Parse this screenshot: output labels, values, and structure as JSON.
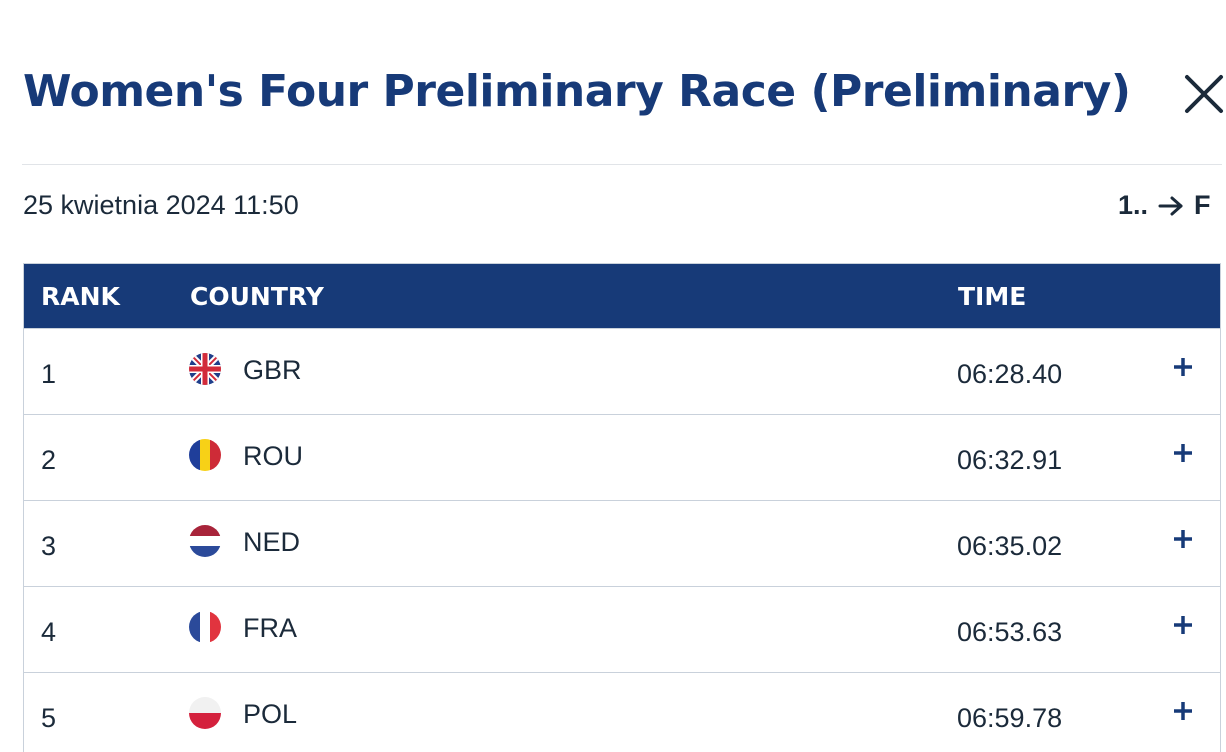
{
  "header": {
    "title": "Women's Four Preliminary Race (Preliminary)",
    "close_icon": "close-icon"
  },
  "subheader": {
    "date": "25 kwietnia 2024 11:50",
    "race_from": "1..",
    "race_arrow_icon": "arrow-right-icon",
    "race_to": "F"
  },
  "table": {
    "columns": {
      "rank": "RANK",
      "country": "COUNTRY",
      "time": "TIME"
    },
    "rows": [
      {
        "rank": "1",
        "flag": "gbr-flag-icon",
        "country": "GBR",
        "time": "06:28.40",
        "expand_icon": "plus-icon"
      },
      {
        "rank": "2",
        "flag": "rou-flag-icon",
        "country": "ROU",
        "time": "06:32.91",
        "expand_icon": "plus-icon"
      },
      {
        "rank": "3",
        "flag": "ned-flag-icon",
        "country": "NED",
        "time": "06:35.02",
        "expand_icon": "plus-icon"
      },
      {
        "rank": "4",
        "flag": "fra-flag-icon",
        "country": "FRA",
        "time": "06:53.63",
        "expand_icon": "plus-icon"
      },
      {
        "rank": "5",
        "flag": "pol-flag-icon",
        "country": "POL",
        "time": "06:59.78",
        "expand_icon": "plus-icon"
      }
    ]
  },
  "colors": {
    "brand_navy": "#173a78",
    "text": "#1b2a3a",
    "row_border": "#c9d1db",
    "divider": "#e1e4e8"
  }
}
